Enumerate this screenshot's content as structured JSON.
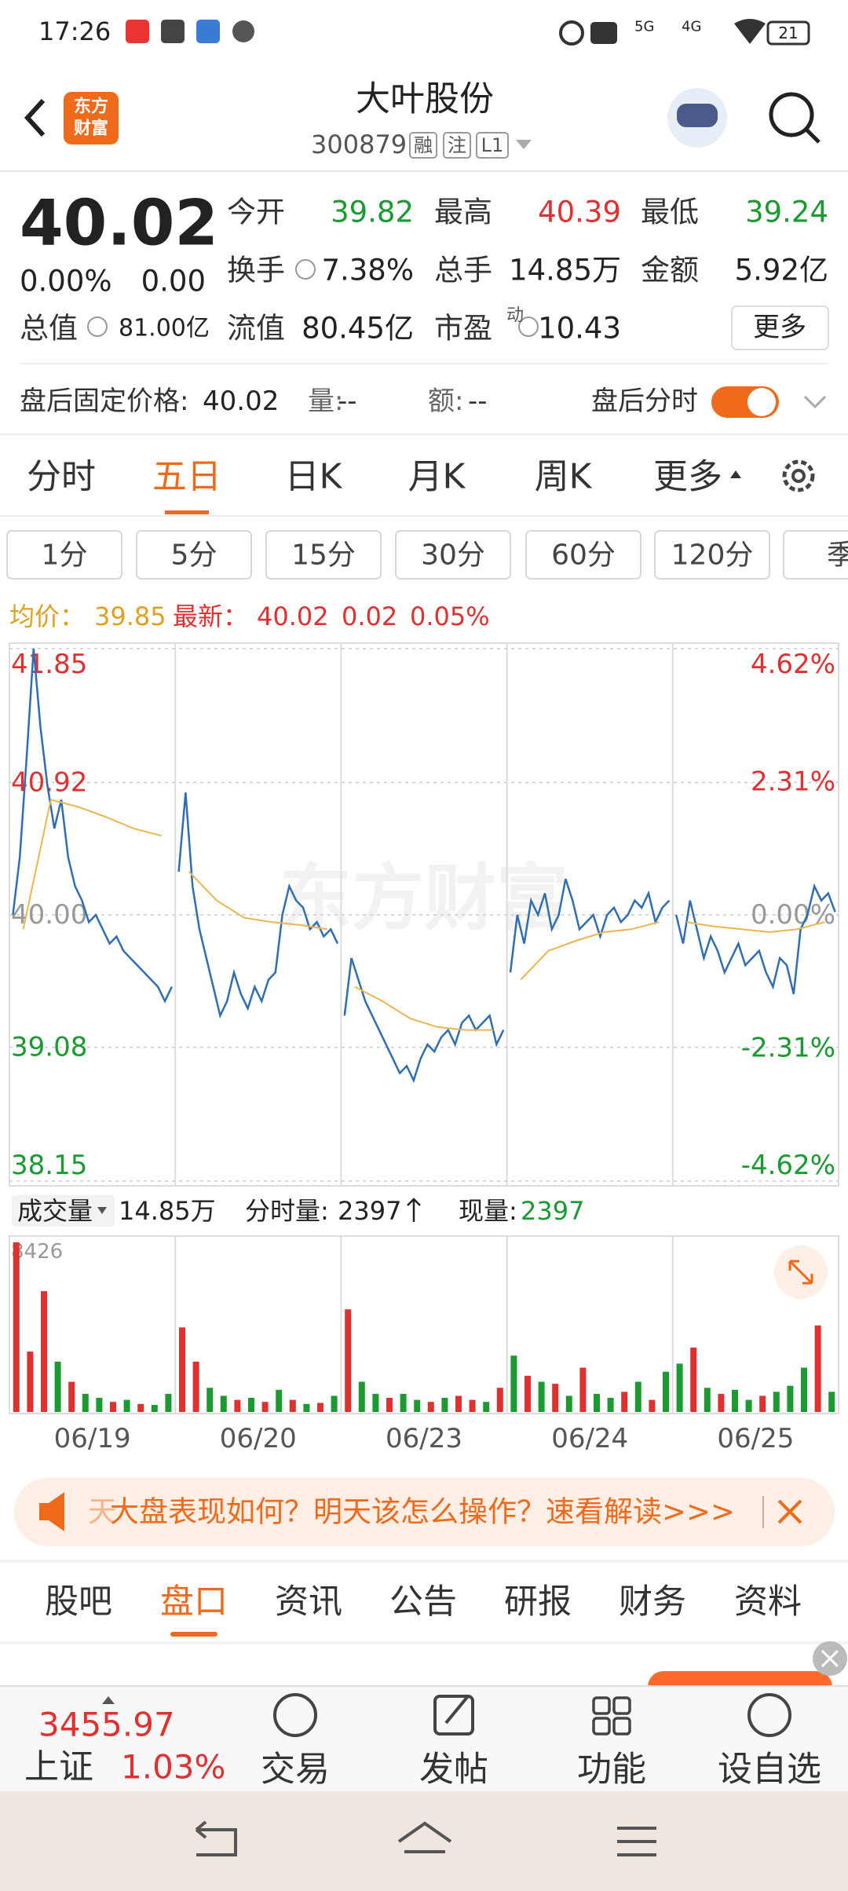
{
  "status_bar": {
    "time": "17:26",
    "battery": "21",
    "network": [
      "5G",
      "4G"
    ]
  },
  "header": {
    "logo": [
      "东方",
      "财富"
    ],
    "title": "大叶股份",
    "code": "300879",
    "tags": [
      "融",
      "注",
      "L1"
    ]
  },
  "quote": {
    "price": "40.02",
    "change_pct": "0.00%",
    "change": "0.00",
    "cap_label": "总值",
    "cap": "81.00亿",
    "stats": [
      {
        "label": "今开",
        "value": "39.82",
        "color": "#1a9a30"
      },
      {
        "label": "最高",
        "value": "40.39",
        "color": "#e03030"
      },
      {
        "label": "最低",
        "value": "39.24",
        "color": "#1a9a30"
      },
      {
        "label": "换手",
        "value": "7.38%",
        "color": "#222222"
      },
      {
        "label": "总手",
        "value": "14.85万",
        "color": "#222222"
      },
      {
        "label": "金额",
        "value": "5.92亿",
        "color": "#222222"
      },
      {
        "label": "流值",
        "value": "80.45亿",
        "color": "#222222"
      },
      {
        "label": "市盈",
        "sup": "动",
        "value": "10.43",
        "color": "#222222"
      }
    ],
    "more": "更多"
  },
  "after_hours": {
    "label": "盘后固定价格:",
    "price": "40.02",
    "volume_label": "量:",
    "volume": "--",
    "amount_label": "额:",
    "amount": "--",
    "toggle_label": "盘后分时"
  },
  "period_tabs": {
    "items": [
      "分时",
      "五日",
      "日K",
      "月K",
      "周K",
      "更多"
    ],
    "active": 1
  },
  "intervals": [
    "1分",
    "5分",
    "15分",
    "30分",
    "60分",
    "120分",
    "季"
  ],
  "chart_data": [
    {
      "type": "line",
      "watermark": "东方财富",
      "legend": {
        "avg_label": "均价：",
        "avg": "39.85",
        "latest_label": "最新：",
        "latest": "40.02",
        "change": "0.02",
        "change_pct": "0.05%"
      },
      "series": [
        {
          "color": "#2f6db5",
          "values": [
            40.0,
            40.4,
            41.1,
            41.85,
            41.3,
            40.9,
            40.6,
            40.8,
            40.4,
            40.2,
            40.1,
            39.95,
            40.0,
            39.9,
            39.8,
            39.85,
            39.75,
            39.7,
            39.65,
            39.6,
            39.55,
            39.5,
            39.4,
            39.5,
            40.3,
            40.85,
            40.2,
            39.9,
            39.7,
            39.5,
            39.3,
            39.4,
            39.6,
            39.45,
            39.35,
            39.5,
            39.4,
            39.55,
            39.6,
            40.0,
            40.2,
            40.1,
            40.05,
            39.9,
            39.95,
            39.85,
            39.9,
            39.8,
            39.3,
            39.7,
            39.55,
            39.4,
            39.3,
            39.2,
            39.1,
            39.0,
            38.9,
            38.95,
            38.85,
            39.0,
            39.1,
            39.05,
            39.15,
            39.2,
            39.1,
            39.25,
            39.3,
            39.2,
            39.25,
            39.3,
            39.1,
            39.2,
            39.6,
            40.0,
            39.8,
            40.1,
            40.0,
            40.15,
            39.9,
            40.0,
            40.25,
            40.1,
            39.9,
            39.95,
            40.0,
            39.85,
            40.0,
            40.05,
            39.95,
            40.0,
            40.1,
            40.05,
            40.15,
            39.95,
            40.05,
            40.1,
            40.0,
            39.8,
            40.1,
            39.9,
            39.7,
            39.85,
            39.75,
            39.6,
            39.7,
            39.8,
            39.65,
            39.7,
            39.75,
            39.6,
            39.5,
            39.7,
            39.65,
            39.45,
            39.9,
            40.0,
            40.2,
            40.1,
            40.15,
            40.02
          ]
        },
        {
          "color": "#ecb54e",
          "values": [
            39.9,
            40.8,
            40.75,
            40.68,
            40.6,
            40.55,
            40.3,
            40.1,
            39.98,
            39.95,
            39.93,
            39.9,
            39.5,
            39.4,
            39.28,
            39.22,
            39.2,
            39.2,
            39.55,
            39.75,
            39.82,
            39.88,
            39.9,
            39.95,
            39.95,
            39.92,
            39.9,
            39.88,
            39.9,
            39.95
          ]
        }
      ],
      "ylim": [
        38.15,
        41.85
      ],
      "yticks": [
        41.85,
        40.92,
        {
          "value": 40,
          "label": "40.00"
        },
        39.08,
        38.15
      ],
      "y2lim": [
        -4.62,
        4.62
      ],
      "y2ticks": [
        {
          "value": 4.62,
          "label": "4.62%"
        },
        {
          "value": 2.31,
          "label": "2.31%"
        },
        {
          "value": 0,
          "label": "0.00%"
        },
        {
          "value": -2.31,
          "label": "-2.31%"
        },
        {
          "value": -4.62,
          "label": "-4.62%"
        }
      ],
      "grid": true
    },
    {
      "type": "bar",
      "header": {
        "label": "成交量",
        "total": "14.85万",
        "tick_label": "分时量:",
        "tick": "2397",
        "now_label": "现量:",
        "now": "2397"
      },
      "days": [
        "06/19",
        "06/20",
        "06/23",
        "06/24",
        "06/25"
      ],
      "values": [
        8426,
        3000,
        6000,
        2500,
        1500,
        900,
        700,
        500,
        600,
        400,
        350,
        900,
        4200,
        2500,
        1200,
        800,
        600,
        700,
        500,
        1100,
        600,
        400,
        450,
        800,
        5100,
        1500,
        900,
        700,
        900,
        600,
        500,
        700,
        800,
        600,
        500,
        1200,
        2800,
        1800,
        1500,
        1400,
        800,
        2200,
        900,
        700,
        1000,
        1500,
        600,
        2000,
        2400,
        3200,
        1200,
        900,
        1100,
        600,
        800,
        1000,
        1300,
        2200,
        4300,
        1000
      ],
      "colors": [
        "#e03030",
        "#e03030",
        "#e03030",
        "#1a9a30",
        "#e03030",
        "#1a9a30",
        "#1a9a30",
        "#e03030",
        "#1a9a30",
        "#e03030",
        "#1a9a30",
        "#1a9a30",
        "#e03030",
        "#e03030",
        "#1a9a30",
        "#1a9a30",
        "#e03030",
        "#1a9a30",
        "#e03030",
        "#1a9a30",
        "#e03030",
        "#1a9a30",
        "#e03030",
        "#1a9a30",
        "#e03030",
        "#1a9a30",
        "#1a9a30",
        "#e03030",
        "#1a9a30",
        "#1a9a30",
        "#e03030",
        "#1a9a30",
        "#e03030",
        "#e03030",
        "#1a9a30",
        "#e03030",
        "#1a9a30",
        "#e03030",
        "#1a9a30",
        "#e03030",
        "#1a9a30",
        "#e03030",
        "#1a9a30",
        "#1a9a30",
        "#e03030",
        "#1a9a30",
        "#e03030",
        "#1a9a30",
        "#1a9a30",
        "#e03030",
        "#1a9a30",
        "#e03030",
        "#1a9a30",
        "#1a9a30",
        "#e03030",
        "#1a9a30",
        "#1a9a30",
        "#1a9a30",
        "#e03030",
        "#1a9a30"
      ],
      "ylim": [
        0,
        8426
      ],
      "yticks": [
        8426
      ]
    }
  ],
  "banner": {
    "fade": "天",
    "text": "大盘表现如何？明天该怎么操作？速看解读>>>"
  },
  "content_tabs": {
    "items": [
      "股吧",
      "盘口",
      "资讯",
      "公告",
      "研报",
      "财务",
      "资料"
    ],
    "active": 1
  },
  "bottom_bar": {
    "index_value": "3455.97",
    "index_name": "上证",
    "index_change": "1.03%",
    "actions": [
      "交易",
      "发帖",
      "功能",
      "设自选"
    ]
  }
}
